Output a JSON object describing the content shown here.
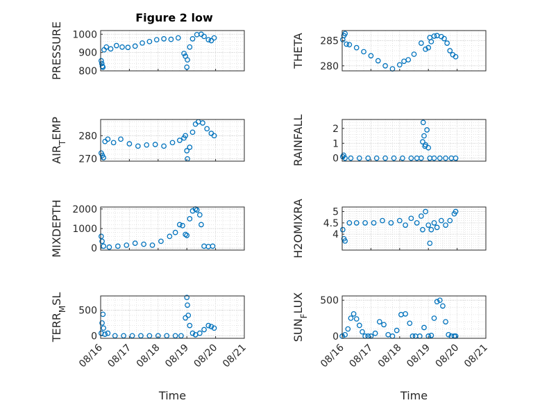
{
  "figure": {
    "title": "Figure 2 low",
    "marker_color": "#0072BD",
    "grid": "dotted",
    "x_ticks": [
      "08/16",
      "08/17",
      "08/18",
      "08/19",
      "08/20",
      "08/21"
    ],
    "x_ticks_shared_by": "bottom row",
    "xlabel": "Time",
    "ylabel_subscripted_note": "AIR_TEMP, TERR_MSL and SUN_FLUX labels render the letter after the underscore as a subscript"
  },
  "chart_data": [
    {
      "id": "pressure",
      "type": "scatter",
      "title": "Figure 2 low",
      "ylabel": "PRESSURE",
      "ylabel_parts": [
        "PRESSURE"
      ],
      "ylim": [
        800,
        1020
      ],
      "yticks": [
        800,
        900,
        1000
      ],
      "yticklabels": [
        "800",
        "900",
        "1000"
      ],
      "x": [
        0.02,
        0.04,
        0.06,
        0.08,
        0.12,
        0.2,
        0.35,
        0.55,
        0.75,
        0.95,
        1.2,
        1.45,
        1.7,
        1.95,
        2.2,
        2.45,
        2.7,
        2.9,
        2.95,
        3.0,
        3.02,
        3.1,
        3.2,
        3.35,
        3.5,
        3.6,
        3.75,
        3.85,
        3.95
      ],
      "y": [
        855,
        840,
        825,
        820,
        915,
        930,
        920,
        938,
        930,
        928,
        935,
        952,
        960,
        970,
        975,
        972,
        980,
        895,
        880,
        820,
        860,
        930,
        975,
        998,
        1000,
        988,
        970,
        965,
        980
      ]
    },
    {
      "id": "theta",
      "type": "scatter",
      "ylabel": "THETA",
      "ylabel_parts": [
        "THETA"
      ],
      "ylim": [
        279,
        287
      ],
      "yticks": [
        280,
        285
      ],
      "yticklabels": [
        "280",
        "285"
      ],
      "x": [
        0.02,
        0.06,
        0.1,
        0.15,
        0.25,
        0.5,
        0.75,
        1.0,
        1.25,
        1.5,
        1.75,
        2.0,
        2.15,
        2.3,
        2.5,
        2.75,
        2.9,
        3.0,
        3.05,
        3.1,
        3.2,
        3.3,
        3.45,
        3.55,
        3.65,
        3.75,
        3.85,
        3.95
      ],
      "y": [
        285.2,
        286.0,
        286.4,
        284.3,
        284.2,
        283.6,
        282.8,
        282.0,
        281.0,
        280.0,
        279.4,
        280.2,
        280.9,
        281.2,
        282.3,
        284.5,
        283.3,
        283.6,
        285.6,
        284.8,
        285.9,
        286.0,
        285.8,
        285.4,
        284.5,
        283.0,
        282.2,
        281.8
      ]
    },
    {
      "id": "air_temp",
      "type": "scatter",
      "ylabel": "AIR_TEMP",
      "ylabel_parts": [
        "AIR",
        "T",
        "EMP"
      ],
      "ylim": [
        269,
        287
      ],
      "yticks": [
        270,
        280
      ],
      "yticklabels": [
        "270",
        "280"
      ],
      "x": [
        0.02,
        0.06,
        0.1,
        0.15,
        0.25,
        0.45,
        0.7,
        1.0,
        1.3,
        1.6,
        1.9,
        2.2,
        2.5,
        2.75,
        2.9,
        2.95,
        3.0,
        3.02,
        3.1,
        3.2,
        3.3,
        3.4,
        3.55,
        3.7,
        3.85,
        3.95
      ],
      "y": [
        272.5,
        271.5,
        270.5,
        277.5,
        278.5,
        277.0,
        278.5,
        276.5,
        275.5,
        276.0,
        276.2,
        275.5,
        277.0,
        278.0,
        279.0,
        280.0,
        273.5,
        270.0,
        275.0,
        281.5,
        285.0,
        286.0,
        285.5,
        283.0,
        281.0,
        280.0
      ]
    },
    {
      "id": "rainfall",
      "type": "scatter",
      "ylabel": "RAINFALL",
      "ylabel_parts": [
        "RAINFALL"
      ],
      "ylim": [
        -0.2,
        2.6
      ],
      "yticks": [
        0,
        1,
        2
      ],
      "yticklabels": [
        "0",
        "1",
        "2"
      ],
      "x": [
        0.02,
        0.05,
        0.1,
        0.3,
        0.6,
        0.9,
        1.2,
        1.5,
        1.8,
        2.1,
        2.4,
        2.6,
        2.75,
        2.8,
        2.82,
        2.85,
        2.88,
        2.9,
        2.95,
        3.0,
        3.05,
        3.2,
        3.4,
        3.6,
        3.8,
        3.95
      ],
      "y": [
        0.1,
        0.2,
        0.0,
        0.0,
        0.0,
        0.0,
        0.0,
        0.0,
        0.0,
        0.0,
        0.0,
        0.0,
        0.0,
        1.1,
        2.4,
        1.5,
        0.8,
        0.9,
        1.9,
        0.7,
        0.0,
        0.0,
        0.0,
        0.0,
        0.0,
        0.0
      ]
    },
    {
      "id": "mixdepth",
      "type": "scatter",
      "ylabel": "MIXDEPTH",
      "ylabel_parts": [
        "MIXDEPTH"
      ],
      "ylim": [
        -100,
        2100
      ],
      "yticks": [
        0,
        1000,
        2000
      ],
      "yticklabels": [
        "0",
        "1000",
        "2000"
      ],
      "x": [
        0.02,
        0.05,
        0.1,
        0.3,
        0.6,
        0.9,
        1.2,
        1.5,
        1.8,
        2.1,
        2.4,
        2.6,
        2.75,
        2.85,
        2.95,
        3.0,
        3.1,
        3.2,
        3.3,
        3.35,
        3.45,
        3.5,
        3.6,
        3.75,
        3.9
      ],
      "y": [
        600,
        350,
        100,
        50,
        100,
        150,
        250,
        200,
        150,
        350,
        600,
        800,
        1200,
        1150,
        700,
        650,
        1500,
        1900,
        2000,
        1950,
        1700,
        1200,
        100,
        80,
        100
      ]
    },
    {
      "id": "h2omixra",
      "type": "scatter",
      "ylabel": "H2OMIXRA",
      "ylabel_parts": [
        "H2OMIXRA"
      ],
      "ylim": [
        3.3,
        5.2
      ],
      "yticks": [
        4,
        4.5,
        5
      ],
      "yticklabels": [
        "4",
        "4.5",
        "5"
      ],
      "x": [
        0.02,
        0.06,
        0.1,
        0.25,
        0.5,
        0.8,
        1.1,
        1.4,
        1.7,
        2.0,
        2.2,
        2.4,
        2.6,
        2.75,
        2.8,
        2.9,
        3.0,
        3.05,
        3.1,
        3.2,
        3.3,
        3.45,
        3.6,
        3.75,
        3.9,
        3.95
      ],
      "y": [
        4.2,
        3.8,
        3.7,
        4.5,
        4.5,
        4.5,
        4.5,
        4.6,
        4.5,
        4.6,
        4.4,
        4.7,
        4.5,
        4.8,
        4.2,
        5.0,
        4.4,
        3.6,
        4.2,
        4.5,
        4.3,
        4.6,
        4.4,
        4.6,
        4.9,
        5.0
      ]
    },
    {
      "id": "terr_msl",
      "type": "scatter",
      "ylabel": "TERR_MSL",
      "ylabel_parts": [
        "TERR",
        "M",
        "SL"
      ],
      "ylim": [
        -50,
        780
      ],
      "yticks": [
        0,
        500
      ],
      "yticklabels": [
        "0",
        "500"
      ],
      "x": [
        0.02,
        0.05,
        0.08,
        0.1,
        0.15,
        0.25,
        0.5,
        0.8,
        1.1,
        1.4,
        1.7,
        2.0,
        2.3,
        2.6,
        2.8,
        2.95,
        3.0,
        3.02,
        3.05,
        3.1,
        3.2,
        3.3,
        3.45,
        3.6,
        3.75,
        3.85,
        3.95
      ],
      "y": [
        50,
        250,
        420,
        150,
        30,
        50,
        0,
        0,
        0,
        0,
        0,
        0,
        0,
        0,
        0,
        350,
        750,
        600,
        400,
        200,
        50,
        20,
        50,
        120,
        200,
        180,
        150
      ]
    },
    {
      "id": "sun_flux",
      "type": "scatter",
      "ylabel": "SUN_FLUX",
      "ylabel_parts": [
        "SUN",
        "F",
        "LUX"
      ],
      "ylim": [
        -30,
        560
      ],
      "yticks": [
        0,
        500
      ],
      "yticklabels": [
        "0",
        "500"
      ],
      "x": [
        0.0,
        0.1,
        0.2,
        0.3,
        0.4,
        0.5,
        0.6,
        0.7,
        0.8,
        0.9,
        1.0,
        1.15,
        1.3,
        1.45,
        1.6,
        1.75,
        1.9,
        2.05,
        2.2,
        2.35,
        2.45,
        2.55,
        2.7,
        2.85,
        3.0,
        3.1,
        3.2,
        3.3,
        3.4,
        3.5,
        3.6,
        3.7,
        3.8,
        3.9,
        3.95
      ],
      "y": [
        0,
        20,
        100,
        250,
        310,
        240,
        150,
        60,
        0,
        0,
        0,
        40,
        200,
        160,
        20,
        0,
        80,
        300,
        310,
        180,
        0,
        0,
        0,
        120,
        0,
        10,
        250,
        480,
        500,
        420,
        200,
        20,
        0,
        0,
        0
      ]
    }
  ]
}
